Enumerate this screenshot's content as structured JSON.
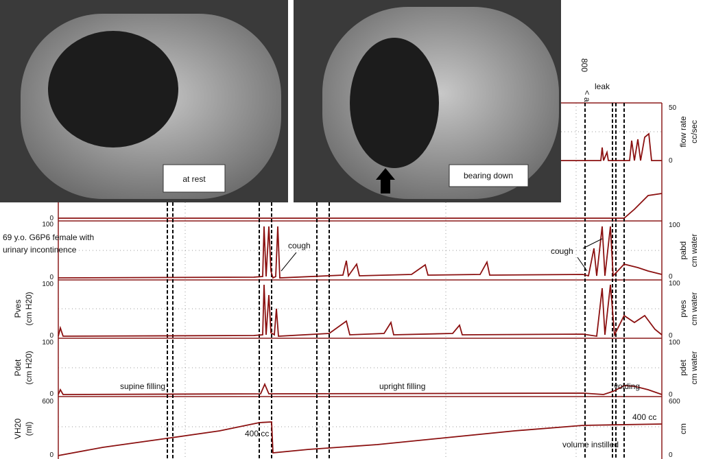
{
  "images": [
    {
      "caption": "at rest"
    },
    {
      "caption": "bearing down"
    }
  ],
  "top_labels": {
    "volume": "800",
    "marker": "< a",
    "leak": "leak"
  },
  "right_axis": {
    "flow": {
      "max": "50",
      "min": "0",
      "label": "flow rate",
      "unit": "cc/sec"
    },
    "pabd": {
      "max": "100",
      "min": "0",
      "label": "pabd",
      "unit": "cm water"
    },
    "pves": {
      "max": "100",
      "min": "0",
      "label": "pves",
      "unit": "cm water"
    },
    "pdet": {
      "max": "100",
      "min": "0",
      "label": "pdet",
      "unit": "cm water"
    },
    "vol": {
      "max": "600",
      "min": "0",
      "unit": "cm"
    }
  },
  "left_axis": {
    "voided": {
      "min": "0"
    },
    "pabd": {
      "max": "100",
      "min": "0"
    },
    "pves": {
      "max": "100",
      "min": "0",
      "label": "Pves",
      "unit": "(cm H20)"
    },
    "pdet": {
      "max": "100",
      "min": "0",
      "label": "Pdet",
      "unit": "(cm H20)"
    },
    "vol": {
      "max": "600",
      "min": "0",
      "label": "VH20",
      "unit": "(ml)"
    }
  },
  "annotations": {
    "patient_1": "69 y.o. G6P6 female with",
    "patient_2": "urinary incontinence",
    "cough_1": "cough",
    "cough_2": "cough",
    "supine": "supine filling",
    "upright": "upright filling",
    "voiding": "voiding",
    "vol_1": "400 cc",
    "vol_2": "400 cc",
    "instilled": "volume instilled"
  }
}
